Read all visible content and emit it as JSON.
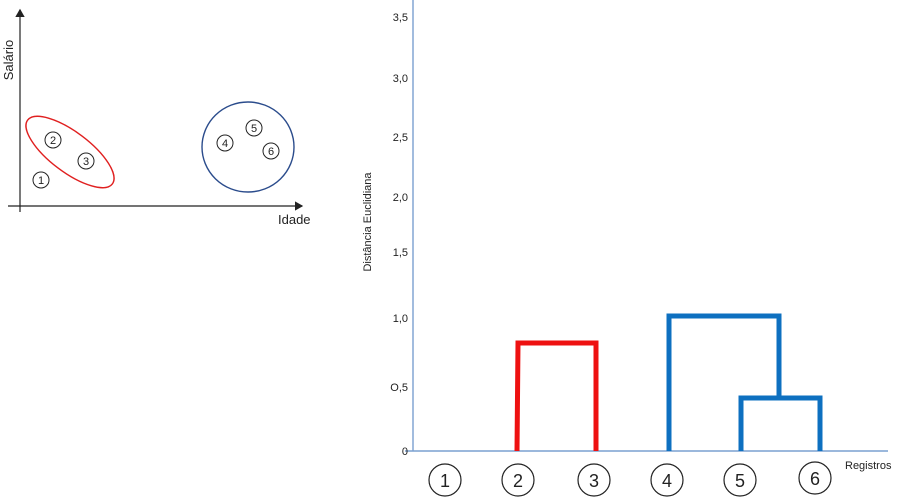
{
  "scatter": {
    "y_label": "Salário",
    "x_label": "Idade",
    "points": [
      "1",
      "2",
      "3",
      "4",
      "5",
      "6"
    ],
    "cluster_colors": {
      "red": "#e02020",
      "blue": "#2b4c8c"
    }
  },
  "dendrogram": {
    "y_label": "Distância Euclidiana",
    "x_label": "Registros",
    "tick_labels": [
      "0",
      "O,5",
      "1,0",
      "1,5",
      "2,0",
      "2,5",
      "3,0",
      "3,5"
    ],
    "leaf_labels": [
      "1",
      "2",
      "3",
      "4",
      "5",
      "6"
    ],
    "colors": {
      "red": "#ee1111",
      "blue": "#0e70c0",
      "axis": "#7aa0d0"
    }
  },
  "chart_data": {
    "type": "dendrogram",
    "ylabel": "Distância Euclidiana",
    "xlabel": "Registros",
    "ylim": [
      0,
      3.5
    ],
    "yticks": [
      0,
      0.5,
      1.0,
      1.5,
      2.0,
      2.5,
      3.0,
      3.5
    ],
    "leaves": [
      "1",
      "2",
      "3",
      "4",
      "5",
      "6"
    ],
    "merges": [
      {
        "left": "2",
        "right": "3",
        "height": 0.82,
        "color": "#ee1111"
      },
      {
        "left": "5",
        "right": "6",
        "height": 0.41,
        "color": "#0e70c0"
      },
      {
        "left": "4",
        "right": "5+6",
        "height": 1.02,
        "color": "#0e70c0"
      }
    ]
  }
}
